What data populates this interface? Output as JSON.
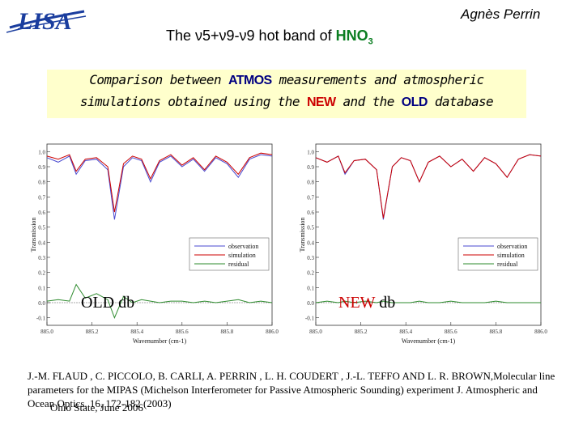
{
  "header": {
    "logo_text": "LISA",
    "title_prefix": "The ν5+ν9-ν9 hot band of",
    "title_chem": "HNO",
    "title_sub": "3",
    "author": "Agnès Perrin"
  },
  "banner": {
    "p1": "Comparison between",
    "atmos": "ATMOS",
    "p2": "measurements and atmospheric",
    "p3": "simulations obtained using the",
    "new": "NEW",
    "p4": "and the",
    "old": "OLD",
    "p5": "database"
  },
  "panels": {
    "left_label": "OLD db",
    "right_label_new": "NEW",
    "right_label_db": "db"
  },
  "reference": {
    "text": "J.-M. FLAUD , C. PICCOLO, B. CARLI, A. PERRIN , L. H. COUDERT , J.-L. TEFFO AND L. R. BROWN,Molecular line parameters for the MIPAS (Michelson Interferometer for Passive Atmospheric Sounding) experiment J. Atmospheric and Ocean Optics, 16, 172-182 (2003)",
    "footer": "Ohio State, June 2006"
  },
  "chart_data": [
    {
      "type": "line",
      "title": "",
      "xlabel": "Wavenumber (cm-1)",
      "ylabel": "Transmission",
      "xlim": [
        885.0,
        886.0
      ],
      "ylim": [
        -0.15,
        1.05
      ],
      "x_ticks": [
        "885.0",
        "885.2",
        "885.4",
        "885.6",
        "885.8",
        "886.0"
      ],
      "y_ticks": [
        "-0.1",
        "0.0",
        "0.1",
        "0.2",
        "0.3",
        "0.4",
        "0.5",
        "0.6",
        "0.7",
        "0.8",
        "0.9",
        "1.0"
      ],
      "legend": [
        "observation",
        "simulation",
        "residual"
      ],
      "legend_position": "lower-right",
      "x": [
        885.0,
        885.05,
        885.1,
        885.13,
        885.17,
        885.22,
        885.27,
        885.3,
        885.34,
        885.38,
        885.42,
        885.46,
        885.5,
        885.55,
        885.6,
        885.65,
        885.7,
        885.75,
        885.8,
        885.85,
        885.9,
        885.95,
        886.0
      ],
      "series": [
        {
          "name": "observation",
          "color": "#4a4ad0",
          "values": [
            0.96,
            0.93,
            0.97,
            0.85,
            0.94,
            0.95,
            0.88,
            0.55,
            0.9,
            0.96,
            0.94,
            0.8,
            0.93,
            0.97,
            0.9,
            0.95,
            0.87,
            0.96,
            0.92,
            0.83,
            0.95,
            0.98,
            0.97
          ]
        },
        {
          "name": "simulation",
          "color": "#cc0000",
          "values": [
            0.97,
            0.95,
            0.98,
            0.87,
            0.95,
            0.96,
            0.9,
            0.6,
            0.92,
            0.97,
            0.95,
            0.82,
            0.94,
            0.98,
            0.91,
            0.96,
            0.88,
            0.97,
            0.93,
            0.85,
            0.96,
            0.99,
            0.98
          ]
        },
        {
          "name": "residual",
          "color": "#2e8b2e",
          "values": [
            0.01,
            0.02,
            0.01,
            0.12,
            0.03,
            0.06,
            0.02,
            -0.1,
            0.04,
            0.0,
            0.02,
            0.01,
            0.0,
            0.01,
            0.01,
            0.0,
            0.01,
            0.0,
            0.01,
            0.02,
            0.0,
            0.01,
            0.0
          ]
        }
      ]
    },
    {
      "type": "line",
      "title": "",
      "xlabel": "Wavenumber (cm-1)",
      "ylabel": "Transmission",
      "xlim": [
        885.0,
        886.0
      ],
      "ylim": [
        -0.15,
        1.05
      ],
      "x_ticks": [
        "885.0",
        "885.2",
        "885.4",
        "885.6",
        "885.8",
        "886.0"
      ],
      "y_ticks": [
        "-0.1",
        "0.0",
        "0.1",
        "0.2",
        "0.3",
        "0.4",
        "0.5",
        "0.6",
        "0.7",
        "0.8",
        "0.9",
        "1.0"
      ],
      "legend": [
        "observation",
        "simulation",
        "residual"
      ],
      "legend_position": "lower-right",
      "x": [
        885.0,
        885.05,
        885.1,
        885.13,
        885.17,
        885.22,
        885.27,
        885.3,
        885.34,
        885.38,
        885.42,
        885.46,
        885.5,
        885.55,
        885.6,
        885.65,
        885.7,
        885.75,
        885.8,
        885.85,
        885.9,
        885.95,
        886.0
      ],
      "series": [
        {
          "name": "observation",
          "color": "#4a4ad0",
          "values": [
            0.96,
            0.93,
            0.97,
            0.85,
            0.94,
            0.95,
            0.88,
            0.55,
            0.9,
            0.96,
            0.94,
            0.8,
            0.93,
            0.97,
            0.9,
            0.95,
            0.87,
            0.96,
            0.92,
            0.83,
            0.95,
            0.98,
            0.97
          ]
        },
        {
          "name": "simulation",
          "color": "#cc0000",
          "values": [
            0.96,
            0.93,
            0.97,
            0.86,
            0.94,
            0.95,
            0.88,
            0.56,
            0.9,
            0.96,
            0.94,
            0.8,
            0.93,
            0.97,
            0.9,
            0.95,
            0.87,
            0.96,
            0.92,
            0.83,
            0.95,
            0.98,
            0.97
          ]
        },
        {
          "name": "residual",
          "color": "#2e8b2e",
          "values": [
            0.0,
            0.01,
            0.0,
            0.01,
            0.0,
            0.01,
            0.0,
            0.01,
            0.0,
            0.0,
            0.0,
            0.01,
            0.0,
            0.0,
            0.01,
            0.0,
            0.0,
            0.0,
            0.01,
            0.0,
            0.0,
            0.0,
            0.0
          ]
        }
      ]
    }
  ]
}
